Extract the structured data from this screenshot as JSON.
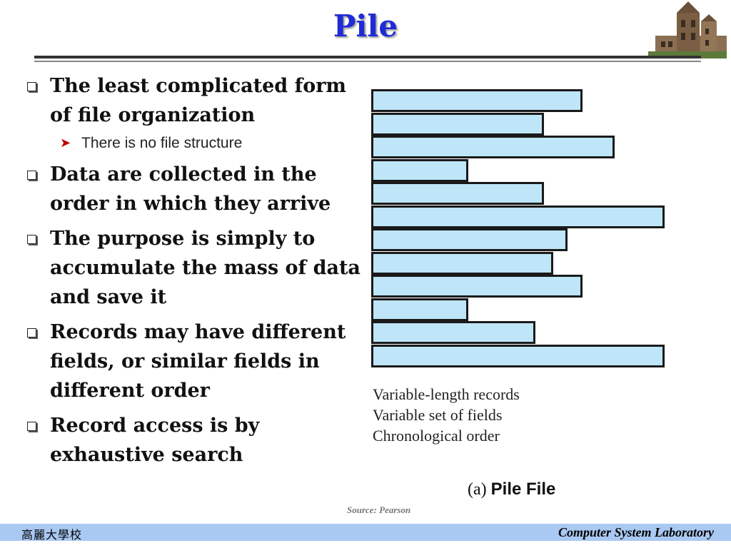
{
  "slide": {
    "title": "Pile",
    "bullets": [
      {
        "text": "The least complicated form of file organization"
      },
      {
        "text": "Data are collected in the order in which they arrive"
      },
      {
        "text": "The purpose is simply to accumulate the mass of data and save it"
      },
      {
        "text": "Records may have different fields, or similar fields in different order"
      },
      {
        "text": "Record access is by exhaustive search"
      }
    ],
    "sub_bullet": "There is no file structure",
    "figure": {
      "properties": [
        "Variable-length records",
        "Variable set of fields",
        "Chronological order"
      ],
      "caption_prefix": "(a)",
      "caption_title": "Pile File",
      "record_lengths": [
        0.72,
        0.59,
        0.83,
        0.33,
        0.59,
        1.0,
        0.67,
        0.62,
        0.72,
        0.33,
        0.56,
        1.0
      ]
    },
    "source": "Source: Pearson",
    "footer_left": "高麗大學校",
    "footer_right": "Computer System Laboratory"
  },
  "colors": {
    "title": "#1f2bd6",
    "record_fill": "#bee6f8",
    "record_border": "#1a1a1a",
    "footer_band": "#a9c9f2",
    "sub_arrow": "#c00000"
  }
}
